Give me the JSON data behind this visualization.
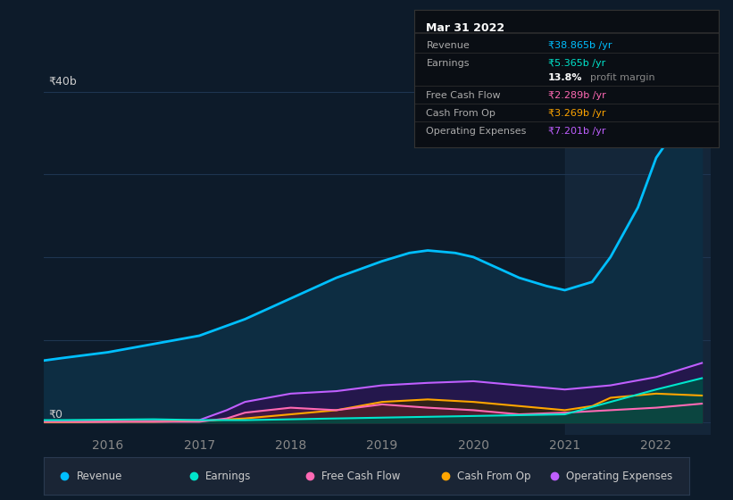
{
  "bg_color": "#0d1b2a",
  "plot_bg_color": "#0d1b2a",
  "chart_area_color": "#0d2d42",
  "title": "Mar 31 2022",
  "y_label_top": "₹40b",
  "y_label_zero": "₹0",
  "x_ticks": [
    2016,
    2017,
    2018,
    2019,
    2020,
    2021,
    2022
  ],
  "x_range": [
    2015.3,
    2022.6
  ],
  "y_range": [
    -1.5,
    42
  ],
  "grid_color": "#1e3550",
  "grid_y_values": [
    0,
    10,
    20,
    30,
    40
  ],
  "revenue": {
    "label": "Revenue",
    "color": "#00bfff",
    "fill_color": "#0a3d5e",
    "x": [
      2015.3,
      2015.5,
      2016.0,
      2016.5,
      2017.0,
      2017.5,
      2018.0,
      2018.5,
      2019.0,
      2019.3,
      2019.5,
      2019.8,
      2020.0,
      2020.2,
      2020.5,
      2020.8,
      2021.0,
      2021.3,
      2021.5,
      2021.8,
      2022.0,
      2022.25,
      2022.5
    ],
    "y": [
      7.5,
      7.8,
      8.5,
      9.5,
      10.5,
      12.5,
      15.0,
      17.5,
      19.5,
      20.5,
      20.8,
      20.5,
      20.0,
      19.0,
      17.5,
      16.5,
      16.0,
      17.0,
      20.0,
      26.0,
      32.0,
      36.0,
      38.865
    ]
  },
  "earnings": {
    "label": "Earnings",
    "color": "#00e5cc",
    "fill_color": "#004d44",
    "x": [
      2015.3,
      2015.5,
      2016.0,
      2016.5,
      2017.0,
      2017.5,
      2018.0,
      2018.5,
      2019.0,
      2019.5,
      2020.0,
      2020.5,
      2021.0,
      2021.5,
      2022.0,
      2022.5
    ],
    "y": [
      0.3,
      0.3,
      0.35,
      0.4,
      0.3,
      0.3,
      0.4,
      0.5,
      0.6,
      0.7,
      0.8,
      0.9,
      1.0,
      2.5,
      4.0,
      5.365
    ]
  },
  "free_cash_flow": {
    "label": "Free Cash Flow",
    "color": "#ff69b4",
    "fill_color": "#5a1a3a",
    "x": [
      2015.3,
      2015.5,
      2016.0,
      2016.5,
      2017.0,
      2017.3,
      2017.5,
      2018.0,
      2018.5,
      2019.0,
      2019.5,
      2020.0,
      2020.5,
      2021.0,
      2021.5,
      2022.0,
      2022.5
    ],
    "y": [
      0.1,
      0.1,
      0.1,
      0.1,
      0.1,
      0.5,
      1.2,
      1.8,
      1.5,
      2.2,
      1.8,
      1.5,
      1.0,
      1.2,
      1.5,
      1.8,
      2.289
    ]
  },
  "cash_from_op": {
    "label": "Cash From Op",
    "color": "#ffa500",
    "fill_color": "#3a2800",
    "x": [
      2015.3,
      2015.5,
      2016.0,
      2016.5,
      2017.0,
      2017.5,
      2018.0,
      2018.5,
      2019.0,
      2019.5,
      2020.0,
      2020.5,
      2021.0,
      2021.3,
      2021.5,
      2022.0,
      2022.5
    ],
    "y": [
      0.05,
      0.05,
      0.1,
      0.1,
      0.2,
      0.5,
      1.0,
      1.5,
      2.5,
      2.8,
      2.5,
      2.0,
      1.5,
      2.0,
      3.0,
      3.5,
      3.269
    ]
  },
  "operating_expenses": {
    "label": "Operating Expenses",
    "color": "#bf5fff",
    "fill_color": "#2d1050",
    "x": [
      2015.3,
      2015.5,
      2016.0,
      2016.5,
      2017.0,
      2017.3,
      2017.5,
      2018.0,
      2018.5,
      2019.0,
      2019.5,
      2020.0,
      2020.5,
      2021.0,
      2021.5,
      2022.0,
      2022.5
    ],
    "y": [
      0.05,
      0.05,
      0.1,
      0.2,
      0.3,
      1.5,
      2.5,
      3.5,
      3.8,
      4.5,
      4.8,
      5.0,
      4.5,
      4.0,
      4.5,
      5.5,
      7.201
    ]
  },
  "highlight_x_start": 2021.0,
  "highlight_color": "#1a2e44",
  "info_box": {
    "title": "Mar 31 2022",
    "rows": [
      {
        "label": "Revenue",
        "value": "₹38.865b /yr",
        "value_color": "#00bfff",
        "label_color": "#aaaaaa"
      },
      {
        "label": "Earnings",
        "value": "₹5.365b /yr",
        "value_color": "#00e5cc",
        "label_color": "#aaaaaa"
      },
      {
        "label": "",
        "value": "13.8% profit margin",
        "value_color": "#ffffff",
        "label_color": "#aaaaaa"
      },
      {
        "label": "Free Cash Flow",
        "value": "₹2.289b /yr",
        "value_color": "#ff69b4",
        "label_color": "#aaaaaa"
      },
      {
        "label": "Cash From Op",
        "value": "₹3.269b /yr",
        "value_color": "#ffa500",
        "label_color": "#aaaaaa"
      },
      {
        "label": "Operating Expenses",
        "value": "₹7.201b /yr",
        "value_color": "#bf5fff",
        "label_color": "#aaaaaa"
      }
    ],
    "bg_color": "#0a0e14",
    "border_color": "#333333",
    "title_color": "#ffffff"
  },
  "legend": [
    {
      "label": "Revenue",
      "color": "#00bfff"
    },
    {
      "label": "Earnings",
      "color": "#00e5cc"
    },
    {
      "label": "Free Cash Flow",
      "color": "#ff69b4"
    },
    {
      "label": "Cash From Op",
      "color": "#ffa500"
    },
    {
      "label": "Operating Expenses",
      "color": "#bf5fff"
    }
  ],
  "legend_bg": "#1a2535",
  "legend_border": "#2a3a50",
  "axis_label_color": "#888888"
}
